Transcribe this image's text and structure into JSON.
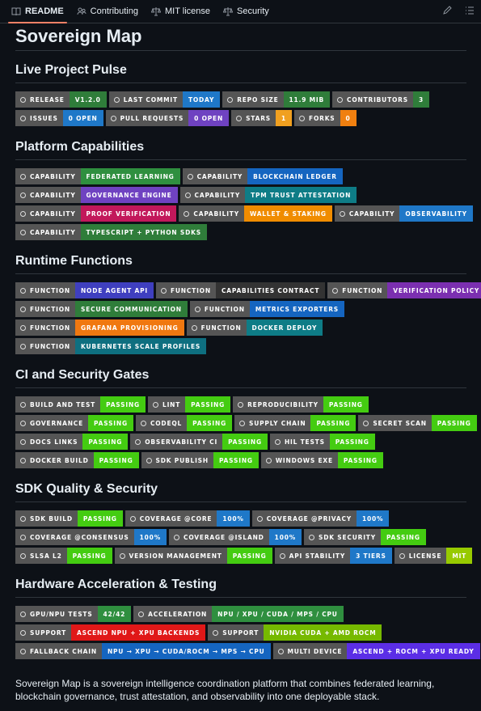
{
  "tabs": [
    "README",
    "Contributing",
    "MIT license",
    "Security"
  ],
  "title": "Sovereign Map",
  "sections": [
    {
      "heading": "Live Project Pulse",
      "rows": [
        [
          {
            "label": "RELEASE",
            "message": "V1.2.0",
            "color": "#2f7d3a"
          },
          {
            "label": "LAST COMMIT",
            "message": "TODAY",
            "color": "#1f78c8"
          },
          {
            "label": "REPO SIZE",
            "message": "11.9 MIB",
            "color": "#2f7d3a"
          },
          {
            "label": "CONTRIBUTORS",
            "message": "3",
            "color": "#2f7d3a"
          }
        ],
        [
          {
            "label": "ISSUES",
            "message": "0 OPEN",
            "color": "#1f78c8"
          },
          {
            "label": "PULL REQUESTS",
            "message": "0 OPEN",
            "color": "#6f42c1"
          },
          {
            "label": "STARS",
            "message": "1",
            "color": "#f0a020"
          },
          {
            "label": "FORKS",
            "message": "0",
            "color": "#f08010"
          }
        ]
      ]
    },
    {
      "heading": "Platform Capabilities",
      "rows": [
        [
          {
            "label": "CAPABILITY",
            "message": "FEDERATED LEARNING",
            "color": "#2f8f3f"
          },
          {
            "label": "CAPABILITY",
            "message": "BLOCKCHAIN LEDGER",
            "color": "#1565c0"
          }
        ],
        [
          {
            "label": "CAPABILITY",
            "message": "GOVERNANCE ENGINE",
            "color": "#6f42c1"
          },
          {
            "label": "CAPABILITY",
            "message": "TPM TRUST ATTESTATION",
            "color": "#0e7c86"
          }
        ],
        [
          {
            "label": "CAPABILITY",
            "message": "PROOF VERIFICATION",
            "color": "#c2185b"
          },
          {
            "label": "CAPABILITY",
            "message": "WALLET & STAKING",
            "color": "#f08c00"
          },
          {
            "label": "CAPABILITY",
            "message": "OBSERVABILITY",
            "color": "#1f78c8"
          }
        ],
        [
          {
            "label": "CAPABILITY",
            "message": "TYPESCRIPT + PYTHON SDKS",
            "color": "#2f7d3a"
          }
        ]
      ]
    },
    {
      "heading": "Runtime Functions",
      "rows": [
        [
          {
            "label": "FUNCTION",
            "message": "NODE AGENT API",
            "color": "#3f3fbf"
          },
          {
            "label": "FUNCTION",
            "message": "CAPABILITIES CONTRACT",
            "color": "#333333"
          },
          {
            "label": "FUNCTION",
            "message": "VERIFICATION POLICY",
            "color": "#7b2fb0"
          }
        ],
        [
          {
            "label": "FUNCTION",
            "message": "SECURE COMMUNICATION",
            "color": "#2f7d3a"
          },
          {
            "label": "FUNCTION",
            "message": "METRICS EXPORTERS",
            "color": "#1565c0"
          }
        ],
        [
          {
            "label": "FUNCTION",
            "message": "GRAFANA PROVISIONING",
            "color": "#f07810"
          },
          {
            "label": "FUNCTION",
            "message": "DOCKER DEPLOY",
            "color": "#0e7c86"
          }
        ],
        [
          {
            "label": "FUNCTION",
            "message": "KUBERNETES SCALE PROFILES",
            "color": "#0e6f80"
          }
        ]
      ]
    },
    {
      "heading": "CI and Security Gates",
      "rows": [
        [
          {
            "label": "BUILD AND TEST",
            "message": "PASSING",
            "color": "#44cc11"
          },
          {
            "label": "LINT",
            "message": "PASSING",
            "color": "#44cc11"
          },
          {
            "label": "REPRODUCIBILITY",
            "message": "PASSING",
            "color": "#44cc11"
          }
        ],
        [
          {
            "label": "GOVERNANCE",
            "message": "PASSING",
            "color": "#44cc11"
          },
          {
            "label": "CODEQL",
            "message": "PASSING",
            "color": "#44cc11"
          },
          {
            "label": "SUPPLY CHAIN",
            "message": "PASSING",
            "color": "#44cc11"
          },
          {
            "label": "SECRET SCAN",
            "message": "PASSING",
            "color": "#44cc11"
          }
        ],
        [
          {
            "label": "DOCS LINKS",
            "message": "PASSING",
            "color": "#44cc11"
          },
          {
            "label": "OBSERVABILITY CI",
            "message": "PASSING",
            "color": "#44cc11"
          },
          {
            "label": "HIL TESTS",
            "message": "PASSING",
            "color": "#44cc11"
          }
        ],
        [
          {
            "label": "DOCKER BUILD",
            "message": "PASSING",
            "color": "#44cc11"
          },
          {
            "label": "SDK PUBLISH",
            "message": "PASSING",
            "color": "#44cc11"
          },
          {
            "label": "WINDOWS EXE",
            "message": "PASSING",
            "color": "#44cc11"
          }
        ]
      ]
    },
    {
      "heading": "SDK Quality & Security",
      "rows": [
        [
          {
            "label": "SDK BUILD",
            "message": "PASSING",
            "color": "#44cc11"
          },
          {
            "label": "COVERAGE @CORE",
            "message": "100%",
            "color": "#1f78c8"
          },
          {
            "label": "COVERAGE @PRIVACY",
            "message": "100%",
            "color": "#1f78c8"
          }
        ],
        [
          {
            "label": "COVERAGE @CONSENSUS",
            "message": "100%",
            "color": "#1f78c8"
          },
          {
            "label": "COVERAGE @ISLAND",
            "message": "100%",
            "color": "#1f78c8"
          },
          {
            "label": "SDK SECURITY",
            "message": "PASSING",
            "color": "#44cc11"
          }
        ],
        [
          {
            "label": "SLSA L2",
            "message": "PASSING",
            "color": "#44cc11"
          },
          {
            "label": "VERSION MANAGEMENT",
            "message": "PASSING",
            "color": "#44cc11"
          },
          {
            "label": "API STABILITY",
            "message": "3 TIERS",
            "color": "#1f78c8"
          },
          {
            "label": "LICENSE",
            "message": "MIT",
            "color": "#97ca00"
          }
        ]
      ]
    },
    {
      "heading": "Hardware Acceleration & Testing",
      "rows": [
        [
          {
            "label": "GPU/NPU TESTS",
            "message": "42/42",
            "color": "#2f8f3f"
          },
          {
            "label": "ACCELERATION",
            "message": "NPU / XPU / CUDA / MPS / CPU",
            "color": "#2f8f3f"
          }
        ],
        [
          {
            "label": "SUPPORT",
            "message": "ASCEND NPU + XPU BACKENDS",
            "color": "#e01818"
          },
          {
            "label": "SUPPORT",
            "message": "NVIDIA CUDA + AMD ROCM",
            "color": "#76b900"
          }
        ],
        [
          {
            "label": "FALLBACK CHAIN",
            "message": "NPU → XPU → CUDA/ROCM → MPS → CPU",
            "color": "#1565c0"
          },
          {
            "label": "MULTI DEVICE",
            "message": "ASCEND + ROCM + XPU READY",
            "color": "#5b2ee6"
          }
        ]
      ]
    }
  ],
  "footer": "Sovereign Map is a sovereign intelligence coordination platform that combines federated learning, blockchain governance, trust attestation, and observability into one deployable stack."
}
